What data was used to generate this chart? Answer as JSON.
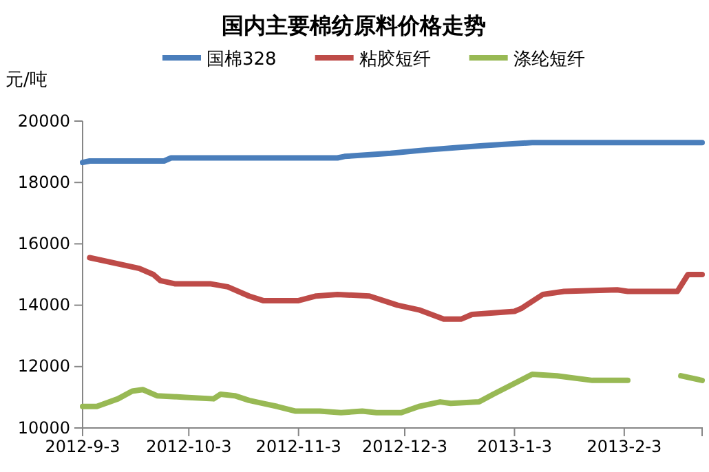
{
  "chart_data": {
    "type": "line",
    "title": "国内主要棉纺原料价格走势",
    "ylabel": "元/吨",
    "legend": "top",
    "marker": "none",
    "line_style": "solid",
    "grid": false,
    "xlim": [
      "2012-09-03",
      "2013-02-25"
    ],
    "xticks": [
      {
        "value": "2012-09-03",
        "label": "2012-9-3"
      },
      {
        "value": "2012-10-03",
        "label": "2012-10-3"
      },
      {
        "value": "2012-11-03",
        "label": "2012-11-3"
      },
      {
        "value": "2012-12-03",
        "label": "2012-12-3"
      },
      {
        "value": "2013-01-03",
        "label": "2013-1-3"
      },
      {
        "value": "2013-02-03",
        "label": "2013-2-3"
      }
    ],
    "ylim": [
      10000,
      20000
    ],
    "yticks": [
      10000,
      12000,
      14000,
      16000,
      18000,
      20000
    ],
    "series": [
      {
        "name": "国棉328",
        "color": "#4a7ebb",
        "x": [
          "2012-09-03",
          "2012-09-05",
          "2012-09-26",
          "2012-09-28",
          "2012-11-14",
          "2012-11-16",
          "2012-11-29",
          "2012-12-08",
          "2012-12-19",
          "2012-12-25",
          "2013-01-08",
          "2013-02-25"
        ],
        "values": [
          18650,
          18700,
          18700,
          18800,
          18800,
          18850,
          18950,
          19050,
          19150,
          19200,
          19300,
          19300
        ]
      },
      {
        "name": "粘胶短纤",
        "color": "#be4b48",
        "x": [
          "2012-09-05",
          "2012-09-19",
          "2012-09-23",
          "2012-09-25",
          "2012-09-29",
          "2012-10-09",
          "2012-10-14",
          "2012-10-20",
          "2012-10-24",
          "2012-11-03",
          "2012-11-08",
          "2012-11-14",
          "2012-11-23",
          "2012-12-01",
          "2012-12-07",
          "2012-12-14",
          "2012-12-19",
          "2012-12-22",
          "2013-01-03",
          "2013-01-05",
          "2013-01-11",
          "2013-01-17",
          "2013-02-01",
          "2013-02-04",
          "2013-02-18",
          "2013-02-21",
          "2013-02-25"
        ],
        "values": [
          15550,
          15200,
          15000,
          14800,
          14700,
          14700,
          14600,
          14300,
          14150,
          14150,
          14300,
          14350,
          14300,
          14000,
          13850,
          13550,
          13550,
          13700,
          13800,
          13900,
          14350,
          14450,
          14500,
          14450,
          14450,
          15000,
          15000
        ]
      },
      {
        "name": "涤纶短纤",
        "color": "#98b954",
        "x": [
          "2012-09-03",
          "2012-09-07",
          "2012-09-13",
          "2012-09-17",
          "2012-09-20",
          "2012-09-24",
          "2012-10-02",
          "2012-10-10",
          "2012-10-12",
          "2012-10-16",
          "2012-10-20",
          "2012-10-24",
          "2012-10-28",
          "2012-11-02",
          "2012-11-09",
          "2012-11-15",
          "2012-11-21",
          "2012-11-25",
          "2012-12-02",
          "2012-12-07",
          "2012-12-13",
          "2012-12-16",
          "2012-12-24",
          "2012-12-28",
          "2013-01-08",
          "2013-01-15",
          "2013-01-25",
          "2013-02-04",
          "2013-02-11",
          "2013-02-19",
          "2013-02-25"
        ],
        "values": [
          10700,
          10700,
          10950,
          11200,
          11250,
          11050,
          11000,
          10950,
          11100,
          11050,
          10900,
          10800,
          10700,
          10550,
          10550,
          10500,
          10550,
          10500,
          10500,
          10700,
          10850,
          10800,
          10850,
          11100,
          11750,
          11700,
          11550,
          11550,
          null,
          11700,
          11550
        ]
      }
    ]
  }
}
